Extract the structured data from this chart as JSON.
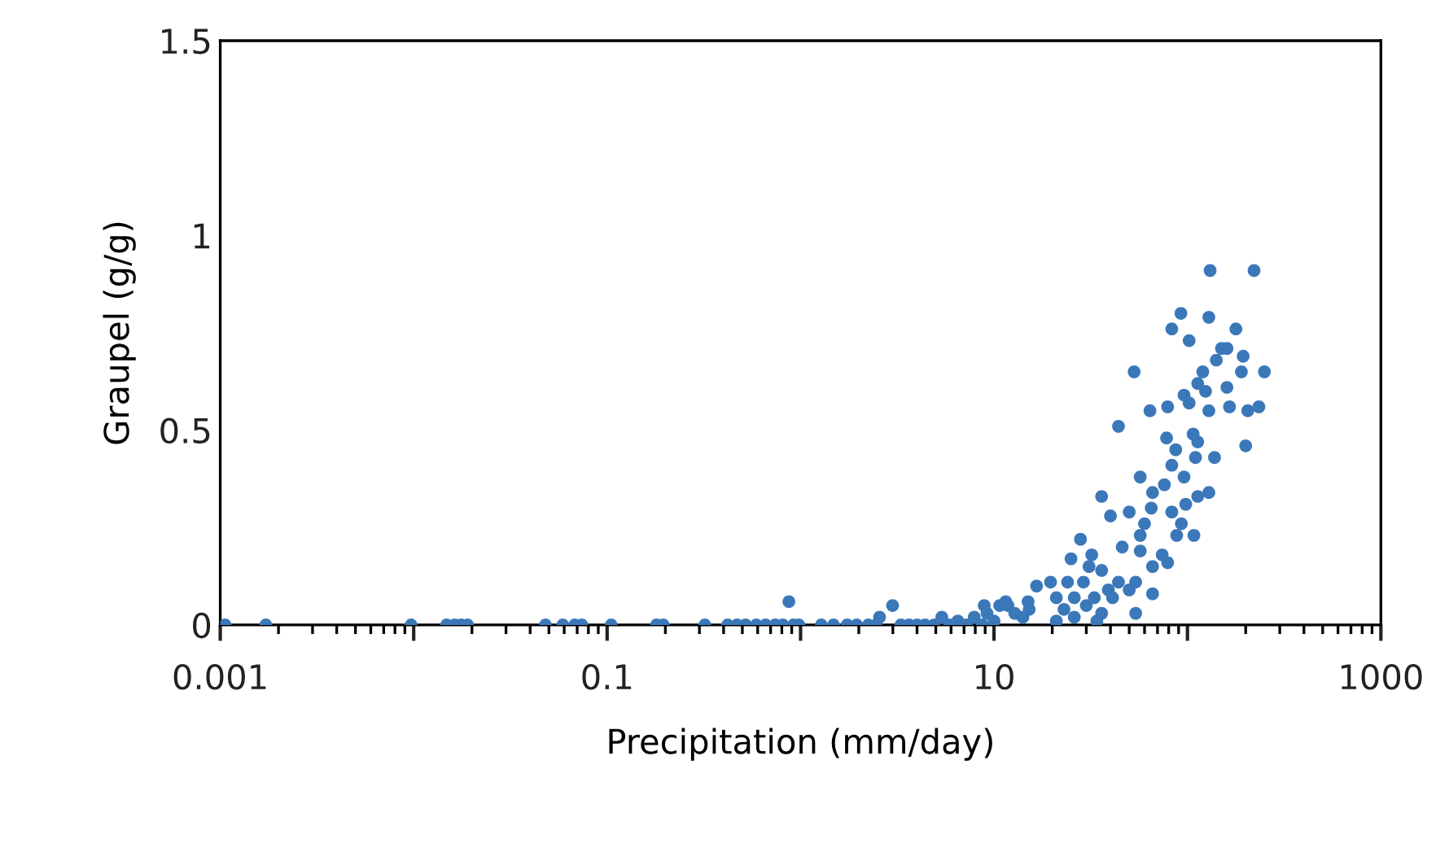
{
  "chart_data": {
    "type": "scatter",
    "xlabel": "Precipitation (mm/day)",
    "ylabel": "Graupel (g/g)",
    "log": "x",
    "marker": "circle",
    "grid": false,
    "legend": false,
    "xlim": [
      0.001,
      1000
    ],
    "xticks": [
      0.001,
      {
        "value": 0.01,
        "label": null
      },
      0.1,
      {
        "value": 1,
        "label": null
      },
      10,
      {
        "value": 100,
        "label": null
      },
      1000
    ],
    "ylim": [
      0,
      1.5
    ],
    "yticks": [
      0,
      0.5,
      1,
      1.5
    ],
    "series": [
      {
        "color": "#3b78b9",
        "x": [
          0.00106,
          0.00172,
          0.0097,
          0.0148,
          0.0163,
          0.0176,
          0.019,
          0.048,
          0.059,
          0.068,
          0.074,
          0.105,
          0.18,
          0.195,
          0.32,
          0.42,
          0.47,
          0.52,
          0.59,
          0.66,
          0.74,
          0.81,
          0.87,
          0.92,
          0.98,
          1.28,
          1.48,
          1.74,
          1.95,
          2.24,
          2.46,
          2.56,
          2.99,
          3.3,
          3.63,
          4.0,
          4.4,
          4.9,
          5.37,
          5.9,
          6.5,
          7.2,
          7.9,
          8.7,
          9.2,
          10,
          10.7,
          11.8,
          12.8,
          14.1,
          15.2,
          16.6,
          8.9,
          11.5,
          15,
          131,
          221,
          92.5,
          83,
          102,
          129,
          178,
          53,
          150,
          160,
          141,
          194,
          190,
          250,
          120,
          113,
          96,
          124,
          160,
          165,
          234,
          205,
          129,
          102,
          64,
          79,
          44,
          200,
          107,
          78,
          113,
          87,
          110,
          138,
          83,
          96,
          57,
          76,
          66,
          129,
          113,
          36,
          98,
          65,
          40,
          50,
          83,
          60,
          93,
          108,
          88,
          57,
          28,
          46,
          57,
          74,
          79,
          66,
          25,
          32,
          31,
          36,
          19.6,
          24,
          29,
          44,
          54,
          39,
          50,
          66,
          26,
          21,
          33,
          30,
          23,
          36,
          54,
          26,
          21,
          34,
          41
        ],
        "values": [
          0,
          0,
          0,
          0,
          0,
          0,
          0,
          0,
          0,
          0,
          0,
          0,
          0,
          0,
          0,
          0,
          0,
          0,
          0,
          0,
          0,
          0,
          0.06,
          0,
          0,
          0,
          0,
          0,
          0,
          0,
          0,
          0.02,
          0.05,
          0,
          0,
          0,
          0,
          0,
          0.02,
          0,
          0.01,
          0,
          0.02,
          0,
          0.03,
          0.01,
          0.05,
          0.05,
          0.03,
          0.02,
          0.04,
          0.1,
          0.05,
          0.06,
          0.06,
          0.91,
          0.91,
          0.8,
          0.76,
          0.73,
          0.79,
          0.76,
          0.65,
          0.71,
          0.71,
          0.68,
          0.69,
          0.65,
          0.65,
          0.65,
          0.62,
          0.59,
          0.6,
          0.61,
          0.56,
          0.56,
          0.55,
          0.55,
          0.57,
          0.55,
          0.56,
          0.51,
          0.46,
          0.49,
          0.48,
          0.47,
          0.45,
          0.43,
          0.43,
          0.41,
          0.38,
          0.38,
          0.36,
          0.34,
          0.34,
          0.33,
          0.33,
          0.31,
          0.3,
          0.28,
          0.29,
          0.29,
          0.26,
          0.26,
          0.23,
          0.23,
          0.23,
          0.22,
          0.2,
          0.19,
          0.18,
          0.16,
          0.15,
          0.17,
          0.18,
          0.15,
          0.14,
          0.11,
          0.11,
          0.11,
          0.11,
          0.11,
          0.09,
          0.09,
          0.08,
          0.07,
          0.07,
          0.07,
          0.05,
          0.04,
          0.03,
          0.03,
          0.02,
          0.01,
          0.01,
          0.07
        ]
      }
    ]
  }
}
